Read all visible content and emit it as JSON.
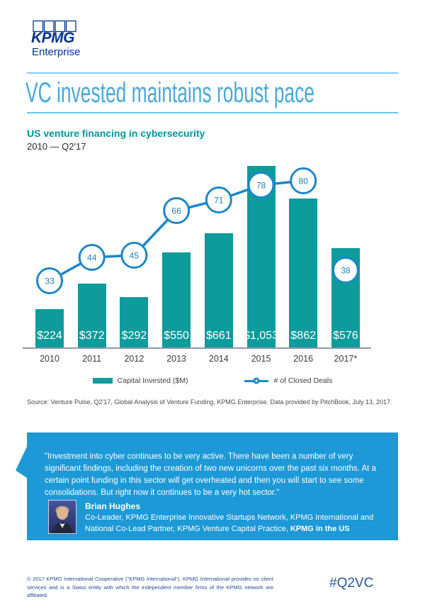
{
  "logo": {
    "text": "KPMG",
    "subtext": "Enterprise",
    "color": "#00338d"
  },
  "header": {
    "title": "VC invested maintains robust pace",
    "title_color": "#48a9dc"
  },
  "chart_header": {
    "title": "US venture financing in cybersecurity",
    "period": "2010 — Q2'17"
  },
  "chart_data": {
    "type": "bar",
    "title": "US venture financing in cybersecurity",
    "subtitle": "2010 — Q2'17",
    "categories": [
      "2010",
      "2011",
      "2012",
      "2013",
      "2014",
      "2015",
      "2016",
      "2017*"
    ],
    "series": [
      {
        "name": "Capital Invested ($M)",
        "type": "bar",
        "values": [
          224,
          372,
          292,
          550,
          661,
          1053,
          862,
          576
        ],
        "labels": [
          "$224",
          "$372",
          "$292",
          "$550",
          "$661",
          "$1,053",
          "$862",
          "$576"
        ],
        "color": "#0d9b9b"
      },
      {
        "name": "# of Closed Deals",
        "type": "line",
        "values": [
          33,
          44,
          45,
          66,
          71,
          78,
          80,
          38
        ],
        "color": "#1c87c9",
        "marker": "open-circle",
        "last_point_disconnected": true
      }
    ],
    "grid": false,
    "legend_position": "bottom"
  },
  "legend": {
    "bar_label": "Capital Invested ($M)",
    "line_label": "# of Closed Deals"
  },
  "source": "Source: Venture Pulse, Q2'17, Global Analysis of Venture Funding, KPMG Enterprise. Data provided by PitchBook, July 13, 2017.",
  "quote": {
    "text": "\"Investment into cyber continues to be very active. There have been a number of very significant findings, including the creation of two new unicorns over the past six months. At a certain point funding in this sector will get overheated and then you will start to see some consolidations. But right now it continues to be a very hot sector.\"",
    "author": "Brian Hughes",
    "role_line1": "Co-Leader, KPMG Enterprise Innovative Startups Network, KPMG International and",
    "role_line2_prefix": "National Co-Lead Partner, KPMG Venture Capital Practice, ",
    "role_line2_bold": "KPMG in the US",
    "bg": "#1c99d6"
  },
  "footer": {
    "legal": "© 2017 KPMG International Cooperative (\"KPMG International\"). KPMG International provides no client services and is a Swiss entity with which the independent member firms of the KPMG network are affiliated.",
    "hashtag": "#Q2VC"
  }
}
